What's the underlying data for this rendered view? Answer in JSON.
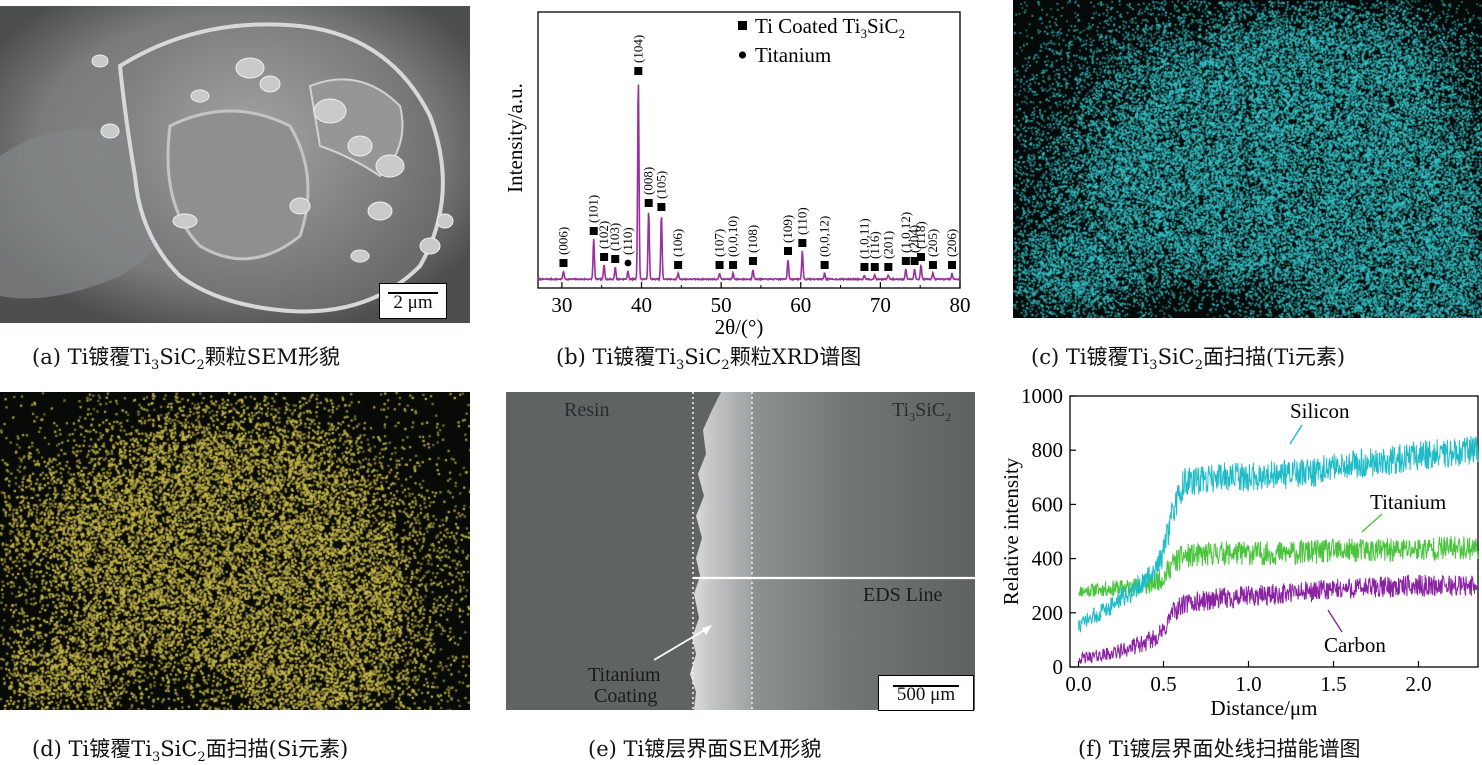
{
  "panels": {
    "a": {
      "caption_parts": [
        "(a) Ti镀覆Ti",
        "3",
        "SiC",
        "2",
        "颗粒SEM形貌"
      ],
      "scalebar": "2 μm",
      "image": "sem-particle"
    },
    "b": {
      "caption_parts": [
        "(b) Ti镀覆Ti",
        "3",
        "SiC",
        "2",
        "颗粒XRD谱图"
      ],
      "image": "xrd-pattern"
    },
    "c": {
      "caption_parts": [
        "(c) Ti镀覆Ti",
        "3",
        "SiC",
        "2",
        "面扫描(Ti元素)"
      ],
      "image": "eds-map-ti",
      "dot_color": "#35c7cc"
    },
    "d": {
      "caption_parts": [
        "(d) Ti镀覆Ti",
        "3",
        "SiC",
        "2",
        "面扫描(Si元素)"
      ],
      "image": "eds-map-si",
      "dot_color": "#c9b94a"
    },
    "e": {
      "caption": "(e) Ti镀层界面SEM形貌",
      "label_resin": "Resin",
      "label_ti3sic2_parts": [
        "Ti",
        "3",
        "SiC",
        "2"
      ],
      "label_eds_line": "EDS Line",
      "label_coating_1": "Titanium",
      "label_coating_2": "Coating",
      "scalebar": "500 μm"
    },
    "f": {
      "caption": "(f) Ti镀层界面处线扫描能谱图"
    }
  },
  "chart_data": [
    {
      "id": "xrd",
      "type": "line",
      "xlabel": "2θ/(°)",
      "ylabel": "Intensity/a.u.",
      "xlim": [
        27,
        80
      ],
      "xticks": [
        30,
        40,
        50,
        60,
        70,
        80
      ],
      "color": "#9a2f9e",
      "legend": [
        {
          "marker": "square",
          "label_parts": [
            "Ti Coated Ti",
            "3",
            "SiC",
            "2"
          ]
        },
        {
          "marker": "circle",
          "label_parts": [
            "Titanium"
          ]
        }
      ],
      "legend_position": "top-right",
      "peaks": [
        {
          "x": 30.2,
          "h": 0.04,
          "label": "(006)",
          "marker": "square"
        },
        {
          "x": 34.0,
          "h": 0.2,
          "label": "(101)",
          "marker": "square"
        },
        {
          "x": 35.3,
          "h": 0.07,
          "label": "(102)",
          "marker": "square"
        },
        {
          "x": 36.7,
          "h": 0.06,
          "label": "(103)",
          "marker": "square"
        },
        {
          "x": 38.3,
          "h": 0.04,
          "label": "(110)",
          "marker": "circle"
        },
        {
          "x": 39.6,
          "h": 1.0,
          "label": "(104)",
          "marker": "square"
        },
        {
          "x": 40.9,
          "h": 0.34,
          "label": "(008)",
          "marker": "square"
        },
        {
          "x": 42.5,
          "h": 0.32,
          "label": "(105)",
          "marker": "square"
        },
        {
          "x": 44.6,
          "h": 0.03,
          "label": "(106)",
          "marker": "square"
        },
        {
          "x": 49.8,
          "h": 0.03,
          "label": "(107)",
          "marker": "square"
        },
        {
          "x": 51.5,
          "h": 0.03,
          "label": "(0,0,10)",
          "marker": "square"
        },
        {
          "x": 54.0,
          "h": 0.05,
          "label": "(108)",
          "marker": "square"
        },
        {
          "x": 58.4,
          "h": 0.1,
          "label": "(109)",
          "marker": "square"
        },
        {
          "x": 60.2,
          "h": 0.14,
          "label": "(110)",
          "marker": "square"
        },
        {
          "x": 63.0,
          "h": 0.03,
          "label": "(0,0,12)",
          "marker": "square"
        },
        {
          "x": 68.0,
          "h": 0.02,
          "label": "(1,0,11)",
          "marker": "square"
        },
        {
          "x": 69.3,
          "h": 0.02,
          "label": "(116)",
          "marker": "square"
        },
        {
          "x": 71.0,
          "h": 0.02,
          "label": "(201)",
          "marker": "square"
        },
        {
          "x": 73.2,
          "h": 0.05,
          "label": "(1,0,12)",
          "marker": "square"
        },
        {
          "x": 74.3,
          "h": 0.05,
          "label": "(204)",
          "marker": "square"
        },
        {
          "x": 75.1,
          "h": 0.07,
          "label": "(118)",
          "marker": "square"
        },
        {
          "x": 76.6,
          "h": 0.03,
          "label": "(205)",
          "marker": "square"
        },
        {
          "x": 79.0,
          "h": 0.03,
          "label": "(206)",
          "marker": "square"
        }
      ]
    },
    {
      "id": "linescan",
      "type": "line",
      "xlabel": "Distance/μm",
      "ylabel": "Relative intensity",
      "xlim": [
        -0.05,
        2.35
      ],
      "ylim": [
        0,
        1000
      ],
      "xticks": [
        0.0,
        0.5,
        1.0,
        1.5,
        2.0
      ],
      "xtick_labels": [
        "0.0",
        "0.5",
        "1.0",
        "1.5",
        "2.0"
      ],
      "yticks": [
        0,
        200,
        400,
        600,
        800,
        1000
      ],
      "series": [
        {
          "name": "Silicon",
          "color": "#1fbcc8",
          "x": [
            0.0,
            0.2,
            0.4,
            0.5,
            0.55,
            0.62,
            0.7,
            0.8,
            1.0,
            1.2,
            1.4,
            1.6,
            1.8,
            2.0,
            2.2,
            2.35
          ],
          "y": [
            150,
            230,
            320,
            420,
            560,
            680,
            690,
            700,
            700,
            710,
            720,
            750,
            760,
            780,
            790,
            800
          ]
        },
        {
          "name": "Titanium",
          "color": "#49c43c",
          "x": [
            0.0,
            0.2,
            0.4,
            0.5,
            0.55,
            0.62,
            0.7,
            0.8,
            1.0,
            1.2,
            1.4,
            1.6,
            1.8,
            2.0,
            2.2,
            2.35
          ],
          "y": [
            280,
            290,
            300,
            330,
            380,
            410,
            410,
            420,
            420,
            420,
            425,
            430,
            430,
            435,
            440,
            440
          ]
        },
        {
          "name": "Carbon",
          "color": "#8b22a3",
          "x": [
            0.0,
            0.2,
            0.4,
            0.5,
            0.55,
            0.62,
            0.7,
            0.8,
            1.0,
            1.2,
            1.4,
            1.6,
            1.8,
            2.0,
            2.2,
            2.35
          ],
          "y": [
            30,
            50,
            90,
            130,
            200,
            230,
            240,
            250,
            260,
            270,
            280,
            290,
            295,
            300,
            300,
            300
          ]
        }
      ]
    }
  ]
}
